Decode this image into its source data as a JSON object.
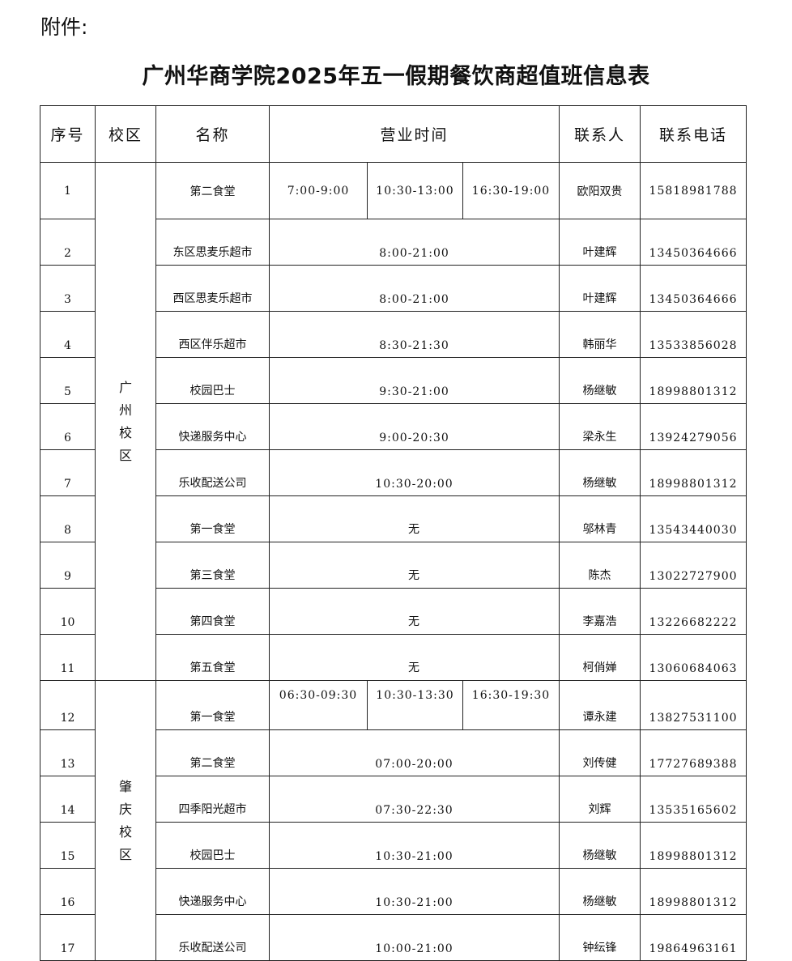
{
  "attachment_label": "附件:",
  "title": "广州华商学院2025年五一假期餐饮商超值班信息表",
  "headers": [
    "序号",
    "校区",
    "名称",
    "营业时间",
    "联系人",
    "联系电话"
  ],
  "campuses": [
    {
      "name": "广州校区",
      "rows": [
        {
          "no": "1",
          "name": "第二食堂",
          "times": [
            "7:00-9:00",
            "10:30-13:00",
            "16:30-19:00"
          ],
          "contact": "欧阳双贵",
          "phone": "15818981788"
        },
        {
          "no": "2",
          "name": "东区思麦乐超市",
          "times": [
            "8:00-21:00"
          ],
          "contact": "叶建辉",
          "phone": "13450364666"
        },
        {
          "no": "3",
          "name": "西区思麦乐超市",
          "times": [
            "8:00-21:00"
          ],
          "contact": "叶建辉",
          "phone": "13450364666"
        },
        {
          "no": "4",
          "name": "西区伴乐超市",
          "times": [
            "8:30-21:30"
          ],
          "contact": "韩丽华",
          "phone": "13533856028"
        },
        {
          "no": "5",
          "name": "校园巴士",
          "times": [
            "9:30-21:00"
          ],
          "contact": "杨继敏",
          "phone": "18998801312"
        },
        {
          "no": "6",
          "name": "快递服务中心",
          "times": [
            "9:00-20:30"
          ],
          "contact": "梁永生",
          "phone": "13924279056"
        },
        {
          "no": "7",
          "name": "乐收配送公司",
          "times": [
            "10:30-20:00"
          ],
          "contact": "杨继敏",
          "phone": "18998801312"
        },
        {
          "no": "8",
          "name": "第一食堂",
          "times": [
            "无"
          ],
          "contact": "邬林青",
          "phone": "13543440030"
        },
        {
          "no": "9",
          "name": "第三食堂",
          "times": [
            "无"
          ],
          "contact": "陈杰",
          "phone": "13022727900"
        },
        {
          "no": "10",
          "name": "第四食堂",
          "times": [
            "无"
          ],
          "contact": "李嘉浩",
          "phone": "13226682222"
        },
        {
          "no": "11",
          "name": "第五食堂",
          "times": [
            "无"
          ],
          "contact": "柯俏婵",
          "phone": "13060684063"
        }
      ]
    },
    {
      "name": "肇庆校区",
      "rows": [
        {
          "no": "12",
          "name": "第一食堂",
          "times": [
            "06:30-09:30",
            "10:30-13:30",
            "16:30-19:30"
          ],
          "contact": "谭永建",
          "phone": "13827531100"
        },
        {
          "no": "13",
          "name": "第二食堂",
          "times": [
            "07:00-20:00"
          ],
          "contact": "刘传健",
          "phone": "17727689388"
        },
        {
          "no": "14",
          "name": "四季阳光超市",
          "times": [
            "07:30-22:30"
          ],
          "contact": "刘辉",
          "phone": "13535165602"
        },
        {
          "no": "15",
          "name": "校园巴士",
          "times": [
            "10:30-21:00"
          ],
          "contact": "杨继敏",
          "phone": "18998801312"
        },
        {
          "no": "16",
          "name": "快递服务中心",
          "times": [
            "10:30-21:00"
          ],
          "contact": "杨继敏",
          "phone": "18998801312"
        },
        {
          "no": "17",
          "name": "乐收配送公司",
          "times": [
            "10:00-21:00"
          ],
          "contact": "钟纭锋",
          "phone": "19864963161"
        }
      ]
    }
  ]
}
